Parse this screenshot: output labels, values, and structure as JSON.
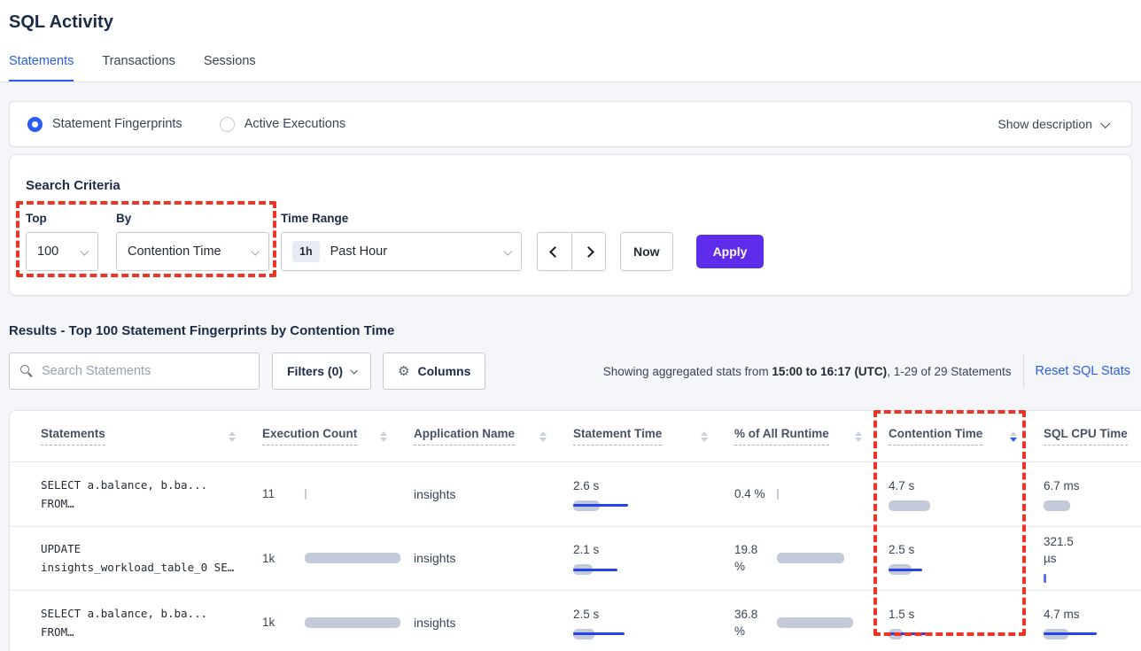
{
  "page_title": "SQL Activity",
  "tabs": [
    {
      "label": "Statements",
      "active": true
    },
    {
      "label": "Transactions",
      "active": false
    },
    {
      "label": "Sessions",
      "active": false
    }
  ],
  "view_toggle": {
    "options": [
      {
        "label": "Statement Fingerprints",
        "selected": true
      },
      {
        "label": "Active Executions",
        "selected": false
      }
    ],
    "show_description_label": "Show description"
  },
  "search_criteria": {
    "title": "Search Criteria",
    "top": {
      "label": "Top",
      "value": "100"
    },
    "by": {
      "label": "By",
      "value": "Contention Time"
    },
    "time_range": {
      "label": "Time Range",
      "badge": "1h",
      "value": "Past Hour"
    },
    "now_label": "Now",
    "apply_label": "Apply"
  },
  "results": {
    "heading": "Results - Top 100 Statement Fingerprints by Contention Time",
    "search_placeholder": "Search Statements",
    "filters_label": "Filters (0)",
    "columns_label": "Columns",
    "stats_prefix": "Showing aggregated stats from ",
    "stats_range": "15:00 to 16:17 (UTC)",
    "stats_suffix": ", 1-29 of 29 Statements",
    "reset_label": "Reset SQL Stats"
  },
  "icons": {
    "search": "magnifier-icon",
    "columns": "gear-icon",
    "columns_glyph": "⚙",
    "filters": "chevron-down-icon",
    "show_description": "chevron-down-icon",
    "selects": "chevron-down-icon",
    "prev_interval": "chevron-left-icon",
    "next_interval": "chevron-right-icon",
    "sort": "caret-up-down-icon"
  },
  "table": {
    "columns": [
      {
        "label": "Statements",
        "sort": "none"
      },
      {
        "label": "Execution Count",
        "sort": "none"
      },
      {
        "label": "Application Name",
        "sort": "none"
      },
      {
        "label": "Statement Time",
        "sort": "none"
      },
      {
        "label": "% of All Runtime",
        "sort": "none"
      },
      {
        "label": "Contention Time",
        "sort": "desc"
      },
      {
        "label": "SQL CPU Time",
        "sort": "none"
      }
    ],
    "rows": [
      {
        "statement_lines": [
          "SELECT a.balance, b.ba...",
          "FROM…"
        ],
        "execution_count": {
          "value": "11",
          "bar": 2,
          "line": 0
        },
        "application_name": "insights",
        "statement_time": {
          "value": "2.6 s",
          "bar": 30,
          "line": 62
        },
        "pct_of_all_runtime": {
          "value": "0.4 %",
          "bar": 2,
          "line": 0
        },
        "contention_time": {
          "value": "4.7 s",
          "bar": 47,
          "line": 0
        },
        "sql_cpu_time": {
          "value": "6.7 ms",
          "bar": 30,
          "line": 0
        }
      },
      {
        "statement_lines": [
          "UPDATE",
          "insights_workload_table_0 SE…"
        ],
        "execution_count": {
          "value": "1k",
          "bar": 108,
          "line": 0
        },
        "application_name": "insights",
        "statement_time": {
          "value": "2.1 s",
          "bar": 22,
          "line": 50
        },
        "pct_of_all_runtime": {
          "value": "19.8 %",
          "bar": 76,
          "line": 0
        },
        "contention_time": {
          "value": "2.5 s",
          "bar": 26,
          "line": 38
        },
        "sql_cpu_time": {
          "value": "321.5 µs",
          "bar": 0,
          "line": 0,
          "tick": true
        }
      },
      {
        "statement_lines": [
          "SELECT a.balance, b.ba...",
          "FROM…"
        ],
        "execution_count": {
          "value": "1k",
          "bar": 108,
          "line": 0
        },
        "application_name": "insights",
        "statement_time": {
          "value": "2.5 s",
          "bar": 24,
          "line": 58
        },
        "pct_of_all_runtime": {
          "value": "36.8 %",
          "bar": 86,
          "line": 0
        },
        "contention_time": {
          "value": "1.5 s",
          "bar": 16,
          "line": 42
        },
        "sql_cpu_time": {
          "value": "4.7 ms",
          "bar": 28,
          "line": 60
        }
      }
    ]
  },
  "colors": {
    "accent_blue": "#2a5cf4",
    "apply_purple": "#5e2ceb",
    "annotation_red": "#ee3425",
    "bar_gray": "#c3cad9",
    "bar_blue": "#2442ee",
    "badge_gray": "#e7ebf3"
  }
}
